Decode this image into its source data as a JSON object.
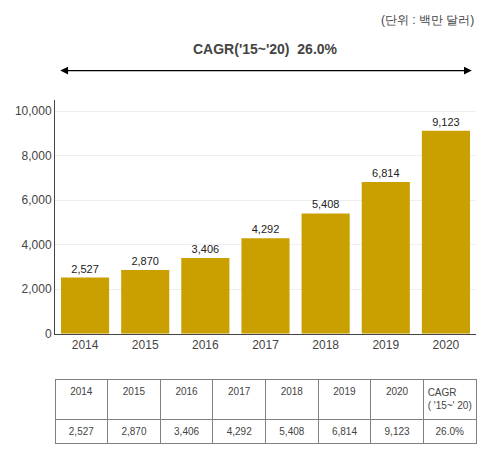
{
  "chart_data": {
    "type": "bar",
    "categories": [
      "2014",
      "2015",
      "2016",
      "2017",
      "2018",
      "2019",
      "2020"
    ],
    "values": [
      2527,
      2870,
      3406,
      4292,
      5408,
      6814,
      9123
    ],
    "value_labels": [
      "2,527",
      "2,870",
      "3,406",
      "4,292",
      "5,408",
      "6,814",
      "9,123"
    ],
    "data_labels": true,
    "color": "#C9A000",
    "ylim": [
      0,
      10500
    ],
    "yticks": [
      0,
      {
        "value": 2000,
        "label": "2,000"
      },
      {
        "value": 4000,
        "label": "4,000"
      },
      {
        "value": 6000,
        "label": "6,000"
      },
      {
        "value": 8000,
        "label": "8,000"
      },
      {
        "value": 10000,
        "label": "10,000"
      }
    ],
    "grid": true,
    "annotations": [
      "(단위 : 백만 달러)",
      "CAGR('15~'20)  26.0%"
    ],
    "table": {
      "headers": [
        "2014",
        "2015",
        "2016",
        "2017",
        "2018",
        "2019",
        "2020",
        "CAGR\n( '15~' 20)"
      ],
      "values": [
        "2,527",
        "2,870",
        "3,406",
        "4,292",
        "5,408",
        "6,814",
        "9,123",
        "26.0%"
      ]
    }
  }
}
